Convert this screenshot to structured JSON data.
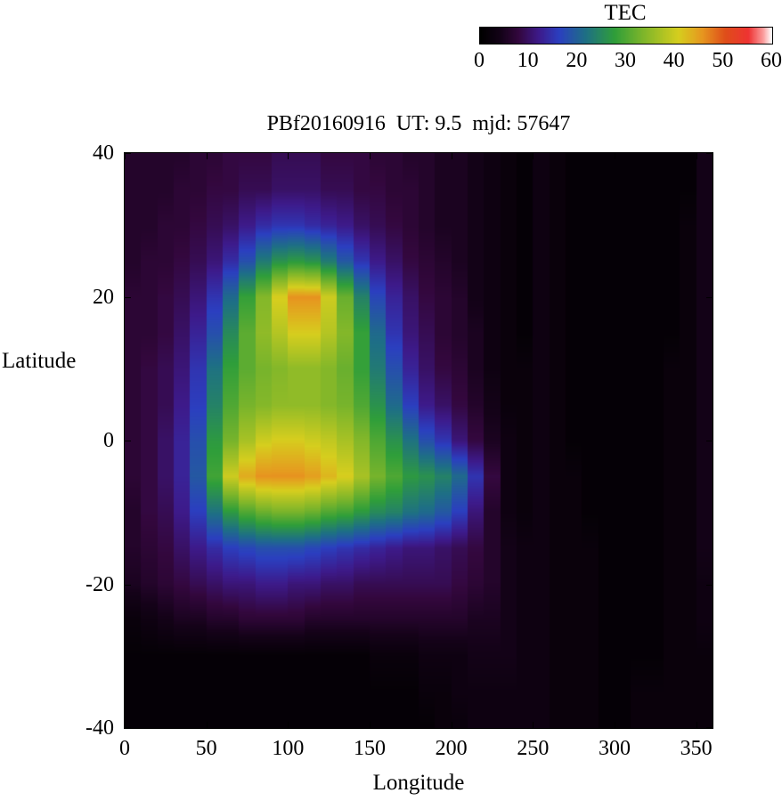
{
  "title": "PBf20160916  UT: 9.5  mjd: 57647",
  "colorbar": {
    "label": "TEC",
    "ticks": [
      0,
      10,
      20,
      30,
      40,
      50,
      60
    ],
    "min": 0,
    "max": 60
  },
  "axes": {
    "xlabel": "Longitude",
    "ylabel": "Latitude",
    "x_ticks": [
      0,
      50,
      100,
      150,
      200,
      250,
      300,
      350
    ],
    "y_ticks": [
      40,
      20,
      0,
      -20,
      -40
    ],
    "xlim": [
      0,
      360
    ],
    "ylim": [
      -40,
      40
    ]
  },
  "chart_data": {
    "type": "heatmap",
    "title": "PBf20160916  UT: 9.5  mjd: 57647",
    "xlabel": "Longitude",
    "ylabel": "Latitude",
    "colorbar_label": "TEC",
    "xlim": [
      0,
      360
    ],
    "ylim": [
      -40,
      40
    ],
    "zlim": [
      0,
      60
    ],
    "grid": false,
    "legend_position": "colorbar-top-right",
    "x_longitude": [
      0,
      10,
      20,
      30,
      40,
      50,
      60,
      70,
      80,
      90,
      100,
      110,
      120,
      130,
      140,
      150,
      160,
      170,
      180,
      190,
      200,
      210,
      220,
      230,
      240,
      250,
      260,
      270,
      280,
      290,
      300,
      310,
      320,
      330,
      340,
      350
    ],
    "y_latitude": [
      40,
      35,
      30,
      25,
      20,
      15,
      10,
      5,
      0,
      -5,
      -10,
      -15,
      -20,
      -25,
      -30,
      -35,
      -40
    ],
    "values_tec": [
      [
        6,
        6,
        6,
        6,
        7,
        7,
        8,
        8,
        8,
        9,
        9,
        9,
        8,
        8,
        8,
        7,
        7,
        6,
        6,
        5,
        5,
        4,
        3,
        2,
        1,
        3,
        2,
        1,
        1,
        1,
        1,
        1,
        1,
        1,
        1,
        4
      ],
      [
        6,
        6,
        6,
        7,
        7,
        8,
        8,
        9,
        9,
        10,
        10,
        10,
        9,
        9,
        8,
        8,
        7,
        7,
        6,
        5,
        5,
        4,
        3,
        2,
        1,
        3,
        2,
        1,
        1,
        1,
        1,
        1,
        1,
        1,
        1,
        4
      ],
      [
        6,
        6,
        7,
        7,
        8,
        9,
        10,
        12,
        14,
        15,
        15,
        14,
        13,
        12,
        10,
        9,
        8,
        7,
        6,
        5,
        5,
        4,
        3,
        2,
        1,
        3,
        2,
        1,
        1,
        1,
        1,
        1,
        1,
        1,
        2,
        4
      ],
      [
        6,
        7,
        7,
        8,
        9,
        11,
        14,
        18,
        23,
        26,
        27,
        26,
        23,
        19,
        15,
        12,
        10,
        8,
        7,
        6,
        5,
        4,
        3,
        2,
        1,
        3,
        2,
        1,
        1,
        1,
        1,
        1,
        1,
        1,
        2,
        4
      ],
      [
        7,
        7,
        8,
        9,
        11,
        15,
        21,
        28,
        34,
        41,
        46,
        46,
        40,
        32,
        24,
        17,
        13,
        10,
        8,
        7,
        6,
        4,
        3,
        2,
        1,
        3,
        2,
        1,
        1,
        1,
        1,
        1,
        1,
        1,
        2,
        4
      ],
      [
        7,
        7,
        8,
        10,
        13,
        18,
        25,
        31,
        35,
        38,
        41,
        41,
        38,
        34,
        28,
        21,
        15,
        11,
        9,
        7,
        6,
        5,
        3,
        2,
        1,
        3,
        2,
        1,
        1,
        1,
        1,
        1,
        1,
        1,
        2,
        4
      ],
      [
        7,
        8,
        9,
        11,
        15,
        22,
        28,
        31,
        33,
        34,
        35,
        35,
        34,
        32,
        28,
        23,
        18,
        13,
        10,
        8,
        7,
        5,
        3,
        2,
        2,
        3,
        2,
        1,
        1,
        1,
        1,
        1,
        1,
        2,
        2,
        4
      ],
      [
        7,
        8,
        9,
        12,
        16,
        24,
        30,
        33,
        34,
        35,
        35,
        35,
        34,
        33,
        30,
        26,
        21,
        16,
        12,
        10,
        8,
        6,
        4,
        2,
        2,
        3,
        2,
        1,
        1,
        1,
        1,
        1,
        1,
        2,
        2,
        4
      ],
      [
        7,
        8,
        10,
        13,
        18,
        27,
        33,
        37,
        40,
        41,
        41,
        40,
        39,
        37,
        34,
        30,
        26,
        22,
        18,
        15,
        11,
        8,
        5,
        3,
        2,
        3,
        2,
        1,
        1,
        1,
        1,
        1,
        1,
        2,
        2,
        4
      ],
      [
        7,
        8,
        10,
        13,
        19,
        29,
        40,
        44,
        46,
        46,
        46,
        45,
        43,
        41,
        37,
        33,
        30,
        27,
        26,
        24,
        21,
        15,
        8,
        3,
        2,
        3,
        2,
        2,
        1,
        1,
        1,
        1,
        1,
        2,
        2,
        4
      ],
      [
        6,
        8,
        9,
        12,
        16,
        22,
        27,
        30,
        32,
        33,
        33,
        32,
        30,
        29,
        27,
        25,
        24,
        22,
        21,
        19,
        16,
        11,
        6,
        3,
        2,
        3,
        2,
        2,
        1,
        1,
        1,
        1,
        1,
        2,
        2,
        4
      ],
      [
        6,
        7,
        8,
        10,
        12,
        14,
        16,
        17,
        18,
        18,
        18,
        17,
        16,
        15,
        14,
        13,
        12,
        11,
        11,
        10,
        9,
        8,
        6,
        4,
        3,
        3,
        2,
        2,
        2,
        1,
        1,
        1,
        1,
        2,
        2,
        4
      ],
      [
        5,
        6,
        7,
        8,
        9,
        10,
        11,
        11,
        12,
        12,
        11,
        11,
        10,
        10,
        9,
        9,
        9,
        9,
        9,
        9,
        8,
        7,
        6,
        4,
        3,
        3,
        2,
        2,
        2,
        1,
        1,
        1,
        1,
        2,
        2,
        3
      ],
      [
        2,
        3,
        4,
        5,
        5,
        6,
        6,
        7,
        7,
        7,
        7,
        6,
        6,
        6,
        6,
        6,
        6,
        6,
        6,
        6,
        6,
        5,
        5,
        4,
        3,
        3,
        2,
        2,
        2,
        1,
        1,
        1,
        1,
        2,
        2,
        3
      ],
      [
        1,
        1,
        1,
        1,
        1,
        1,
        1,
        1,
        1,
        1,
        1,
        1,
        1,
        1,
        1,
        2,
        2,
        2,
        3,
        3,
        3,
        4,
        4,
        4,
        3,
        3,
        2,
        2,
        2,
        1,
        1,
        1,
        1,
        2,
        2,
        2
      ],
      [
        1,
        1,
        1,
        1,
        1,
        1,
        1,
        1,
        1,
        1,
        1,
        1,
        1,
        1,
        1,
        1,
        1,
        1,
        2,
        2,
        3,
        3,
        3,
        3,
        3,
        3,
        2,
        2,
        2,
        1,
        1,
        2,
        2,
        2,
        2,
        2
      ],
      [
        1,
        1,
        1,
        1,
        1,
        1,
        1,
        1,
        1,
        1,
        1,
        1,
        1,
        1,
        1,
        1,
        1,
        1,
        1,
        2,
        2,
        3,
        3,
        3,
        3,
        3,
        2,
        2,
        2,
        1,
        1,
        2,
        2,
        2,
        2,
        2
      ]
    ],
    "colormap_stops": [
      {
        "t": 0.0,
        "color": "#000000"
      },
      {
        "t": 0.07,
        "color": "#140218"
      },
      {
        "t": 0.13,
        "color": "#33073d"
      },
      {
        "t": 0.2,
        "color": "#3d1a8a"
      },
      {
        "t": 0.27,
        "color": "#2b3fc0"
      },
      {
        "t": 0.36,
        "color": "#1e6f86"
      },
      {
        "t": 0.46,
        "color": "#2f9e3a"
      },
      {
        "t": 0.56,
        "color": "#7fb62a"
      },
      {
        "t": 0.68,
        "color": "#d6ce1e"
      },
      {
        "t": 0.76,
        "color": "#e6981f"
      },
      {
        "t": 0.84,
        "color": "#df4e1a"
      },
      {
        "t": 0.92,
        "color": "#ee3333"
      },
      {
        "t": 0.97,
        "color": "#fb9b9b"
      },
      {
        "t": 1.0,
        "color": "#ffffff"
      }
    ]
  }
}
